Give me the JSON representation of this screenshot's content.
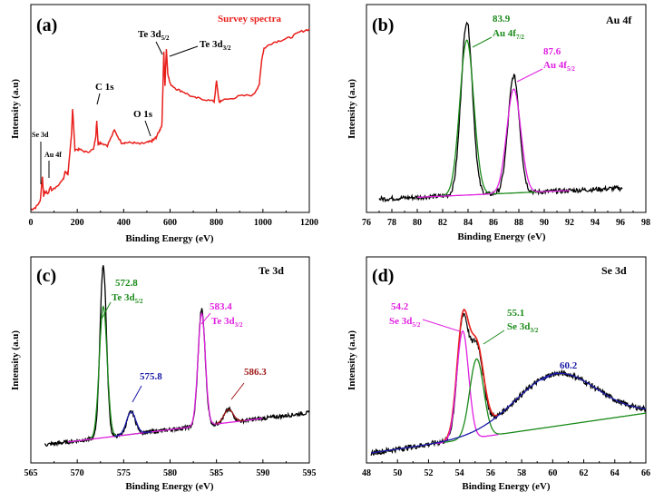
{
  "figure": {
    "panels": [
      {
        "id": "a",
        "label": "(a)",
        "title": "Survey spectra",
        "title_color": "#e8201c",
        "xlabel": "Binding Energy (eV)",
        "ylabel": "Intensity (a.u)",
        "xlim": [
          0,
          1200
        ],
        "xticks": [
          "0",
          "200",
          "400",
          "600",
          "800",
          "1000",
          "1200"
        ],
        "annotations": [
          {
            "text": "Se 3d",
            "x": 52,
            "y": 135
          },
          {
            "text": "Au 4f",
            "x": 84,
            "y": 95
          },
          {
            "text": "C 1s",
            "x": 284,
            "y": 335
          },
          {
            "text": "O 1s",
            "x": 531,
            "y": 267
          },
          {
            "text": "Te 3d5/2",
            "x": 573,
            "y": 590
          },
          {
            "text": "Te 3d3/2",
            "x": 584,
            "y": 600
          }
        ]
      },
      {
        "id": "b",
        "label": "(b)",
        "title": "Au 4f",
        "xlabel": "Binding Energy (eV)",
        "ylabel": "Intensity (a.u)",
        "xlim": [
          76,
          98
        ],
        "xticks": [
          "76",
          "78",
          "80",
          "82",
          "84",
          "86",
          "88",
          "90",
          "92",
          "94",
          "96",
          "98"
        ],
        "peaks": [
          {
            "value": "83.9",
            "name": "Au 4f7/2",
            "color": "#1a8a1a"
          },
          {
            "value": "87.6",
            "name": "Au 4f5/2",
            "color": "#e020e0"
          }
        ]
      },
      {
        "id": "c",
        "label": "(c)",
        "title": "Te 3d",
        "xlabel": "Binding Energy (eV)",
        "ylabel": "Intensity (a.u)",
        "xlim": [
          565,
          595
        ],
        "xticks": [
          "565",
          "570",
          "575",
          "580",
          "585",
          "590",
          "595"
        ],
        "peaks": [
          {
            "value": "572.8",
            "name": "Te 3d5/2",
            "color": "#1a8a1a"
          },
          {
            "value": "583.4",
            "name": "Te 3d3/2",
            "color": "#e020e0"
          },
          {
            "value": "575.8",
            "name": "",
            "color": "#1a1aa8"
          },
          {
            "value": "586.3",
            "name": "",
            "color": "#a01818"
          }
        ]
      },
      {
        "id": "d",
        "label": "(d)",
        "title": "Se 3d",
        "xlabel": "Binding Energy (eV)",
        "ylabel": "Intensity (a.u)",
        "xlim": [
          48,
          66
        ],
        "xticks": [
          "48",
          "50",
          "52",
          "54",
          "56",
          "58",
          "60",
          "62",
          "64",
          "66"
        ],
        "peaks": [
          {
            "value": "54.2",
            "name": "Se 3d5/2",
            "color": "#e020e0"
          },
          {
            "value": "55.1",
            "name": "Se 3d3/2",
            "color": "#1a8a1a"
          },
          {
            "value": "60.2",
            "name": "",
            "color": "#1a1aa8"
          }
        ]
      }
    ]
  },
  "chart_data": [
    {
      "type": "line",
      "panel": "a",
      "title": "Survey spectra",
      "xlabel": "Binding Energy (eV)",
      "ylabel": "Intensity (a.u)",
      "xlim": [
        0,
        1200
      ],
      "series": [
        {
          "name": "survey",
          "color": "#e8201c",
          "x": [
            0,
            20,
            40,
            50,
            55,
            60,
            75,
            84,
            90,
            110,
            140,
            148,
            160,
            175,
            180,
            190,
            210,
            240,
            270,
            280,
            284,
            290,
            300,
            330,
            360,
            390,
            410,
            440,
            470,
            500,
            520,
            531,
            540,
            555,
            565,
            573,
            578,
            584,
            590,
            600,
            630,
            660,
            700,
            740,
            790,
            800,
            812,
            820,
            860,
            900,
            960,
            985,
            995,
            1005,
            1040,
            1080,
            1120,
            1160,
            1200
          ],
          "y": [
            10,
            18,
            40,
            130,
            60,
            75,
            70,
            95,
            80,
            95,
            120,
            150,
            140,
            280,
            380,
            230,
            230,
            220,
            230,
            280,
            335,
            250,
            255,
            245,
            300,
            255,
            255,
            255,
            250,
            255,
            260,
            267,
            275,
            300,
            320,
            590,
            460,
            600,
            510,
            470,
            450,
            440,
            420,
            415,
            405,
            480,
            400,
            410,
            415,
            425,
            430,
            470,
            560,
            600,
            620,
            630,
            640,
            660,
            670
          ]
        }
      ]
    },
    {
      "type": "line",
      "panel": "b",
      "title": "Au 4f",
      "xlabel": "Binding Energy (eV)",
      "ylabel": "Intensity (a.u)",
      "xlim": [
        76,
        98
      ],
      "series": [
        {
          "name": "Au 4f7/2 fit",
          "color": "#1a8a1a",
          "peak_center": 83.9
        },
        {
          "name": "Au 4f5/2 fit",
          "color": "#e020e0",
          "peak_center": 87.6
        }
      ]
    },
    {
      "type": "line",
      "panel": "c",
      "title": "Te 3d",
      "xlabel": "Binding Energy (eV)",
      "ylabel": "Intensity (a.u)",
      "xlim": [
        565,
        595
      ],
      "series": [
        {
          "name": "Te 3d5/2 fit",
          "color": "#1a8a1a",
          "peak_center": 572.8
        },
        {
          "name": "Te 3d3/2 fit",
          "color": "#e020e0",
          "peak_center": 583.4
        },
        {
          "name": "satellite",
          "color": "#1a1aa8",
          "peak_center": 575.8
        },
        {
          "name": "satellite",
          "color": "#a01818",
          "peak_center": 586.3
        }
      ]
    },
    {
      "type": "line",
      "panel": "d",
      "title": "Se 3d",
      "xlabel": "Binding Energy (eV)",
      "ylabel": "Intensity (a.u)",
      "xlim": [
        48,
        66
      ],
      "series": [
        {
          "name": "Se 3d5/2 fit",
          "color": "#e020e0",
          "peak_center": 54.2
        },
        {
          "name": "Se 3d3/2 fit",
          "color": "#1a8a1a",
          "peak_center": 55.1
        },
        {
          "name": "broad component",
          "color": "#1a1aa8",
          "peak_center": 60.2
        }
      ]
    }
  ]
}
